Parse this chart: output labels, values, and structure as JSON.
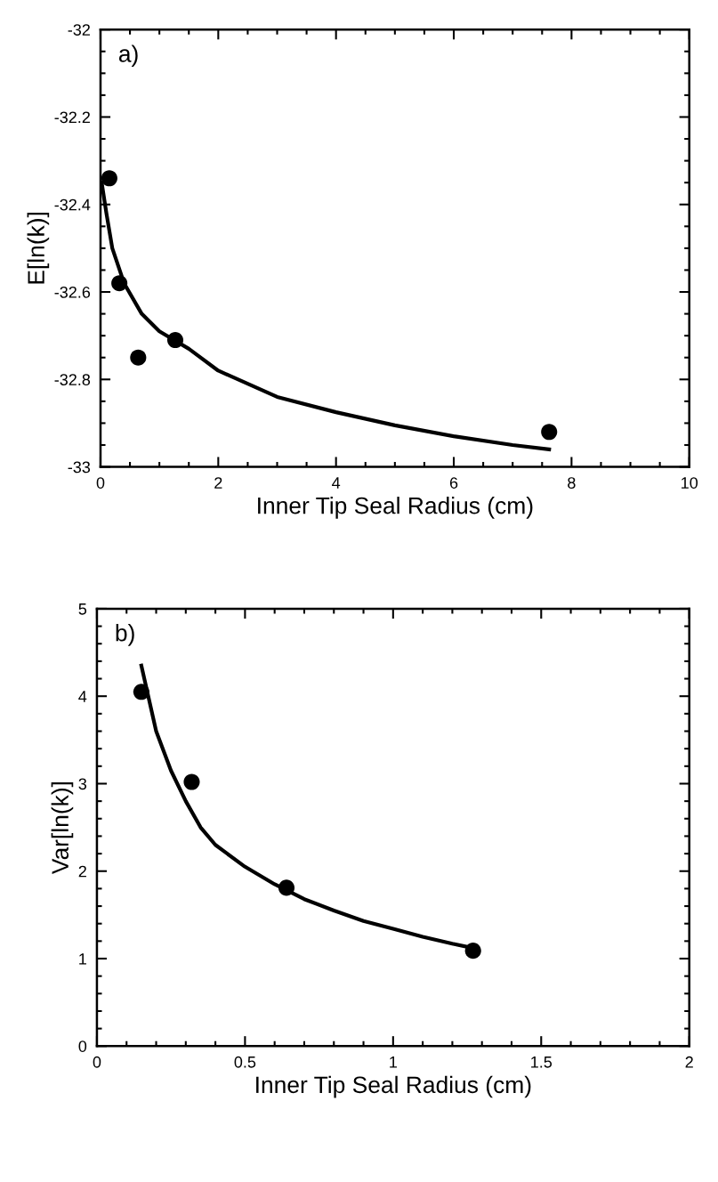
{
  "chart_data": [
    {
      "type": "scatter",
      "xlabel": "Inner Tip Seal Radius (cm)",
      "ylabel": "E[ln(k)]",
      "annotations": [
        "a)"
      ],
      "grid": false,
      "legend": false,
      "series": [
        {
          "color": "#000000",
          "marker": "circle",
          "x": [
            0.15,
            0.32,
            0.64,
            1.27,
            7.62
          ],
          "values": [
            -32.34,
            -32.58,
            -32.75,
            -32.71,
            -32.92
          ]
        },
        {
          "type": "line",
          "marker": "none",
          "color": "#000000",
          "x": [
            0.02,
            0.1,
            0.2,
            0.4,
            0.7,
            1,
            1.5,
            2,
            3,
            4,
            5,
            6,
            7,
            7.62
          ],
          "values": [
            -32.35,
            -32.42,
            -32.5,
            -32.58,
            -32.65,
            -32.69,
            -32.73,
            -32.78,
            -32.84,
            -32.875,
            -32.905,
            -32.93,
            -32.95,
            -32.96
          ]
        }
      ],
      "xlim": [
        0,
        10
      ],
      "xticks": [
        0,
        2,
        4,
        6,
        8,
        10
      ],
      "ylim": [
        -33,
        -32
      ],
      "yticks": [
        -33,
        -32.8,
        -32.6,
        -32.4,
        -32.2,
        -32
      ]
    },
    {
      "type": "scatter",
      "xlabel": "Inner Tip Seal Radius (cm)",
      "ylabel": "Var[ln(k)]",
      "annotations": [
        "b)"
      ],
      "grid": false,
      "legend": false,
      "series": [
        {
          "color": "#000000",
          "marker": "circle",
          "x": [
            0.15,
            0.32,
            0.64,
            1.27
          ],
          "values": [
            4.05,
            3.02,
            1.81,
            1.09
          ]
        },
        {
          "type": "line",
          "marker": "none",
          "color": "#000000",
          "x": [
            0.15,
            0.2,
            0.25,
            0.3,
            0.35,
            0.4,
            0.5,
            0.6,
            0.7,
            0.8,
            0.9,
            1.0,
            1.1,
            1.2,
            1.27
          ],
          "values": [
            4.35,
            3.6,
            3.15,
            2.8,
            2.5,
            2.3,
            2.05,
            1.85,
            1.68,
            1.55,
            1.43,
            1.34,
            1.25,
            1.17,
            1.12
          ]
        }
      ],
      "xlim": [
        0,
        2
      ],
      "xticks": [
        0,
        0.5,
        1,
        1.5,
        2
      ],
      "ylim": [
        0,
        5
      ],
      "yticks": [
        0,
        1,
        2,
        3,
        4,
        5
      ]
    }
  ]
}
